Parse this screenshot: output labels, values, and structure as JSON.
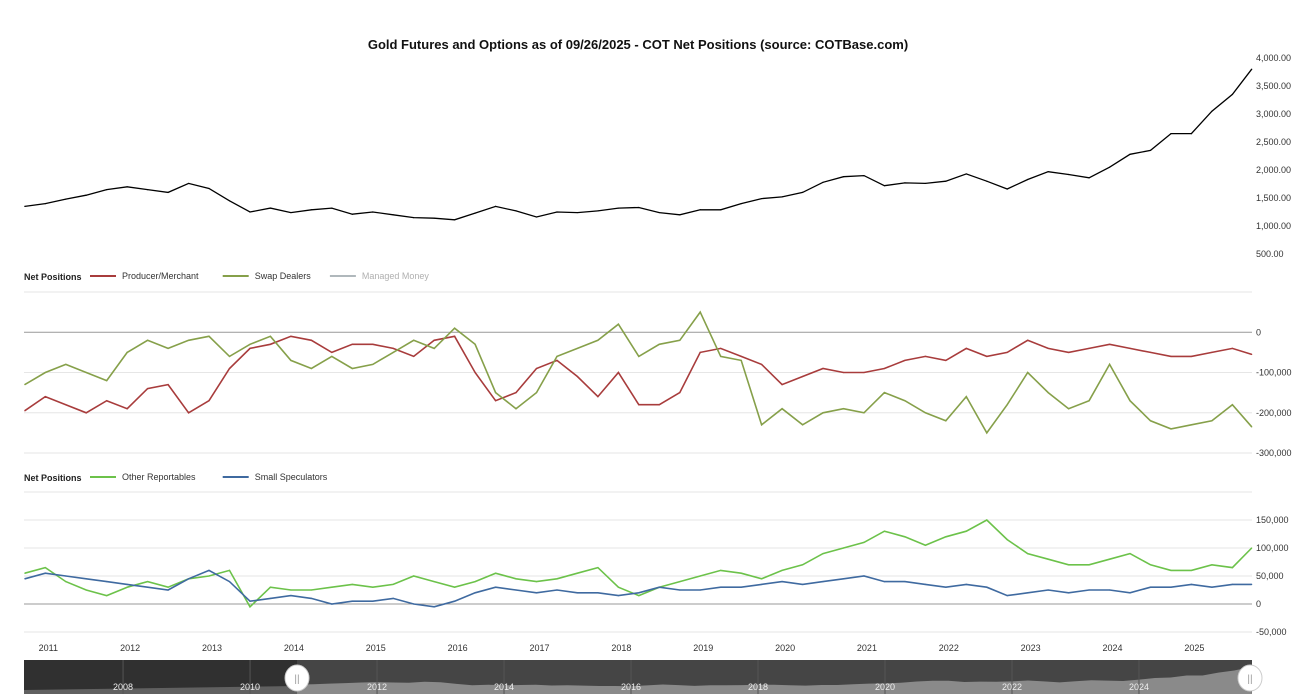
{
  "chart_data": [
    {
      "type": "line",
      "title": "Gold Futures and Options as of 09/26/2025 - COT Net Positions (source: COTBase.com)",
      "y_ticks": [
        "500.00",
        "1,000.00",
        "1,500.00",
        "2,000.00",
        "2,500.00",
        "3,000.00",
        "3,500.00",
        "4,000.00"
      ],
      "ylim": [
        500,
        4000
      ],
      "grid": false,
      "series": [
        {
          "color": "#000000",
          "values": [
            1350,
            1400,
            1480,
            1550,
            1650,
            1700,
            1650,
            1600,
            1760,
            1670,
            1450,
            1250,
            1320,
            1240,
            1290,
            1320,
            1210,
            1250,
            1200,
            1150,
            1140,
            1110,
            1230,
            1350,
            1270,
            1160,
            1250,
            1240,
            1270,
            1320,
            1330,
            1240,
            1200,
            1290,
            1290,
            1400,
            1490,
            1520,
            1600,
            1780,
            1880,
            1900,
            1720,
            1770,
            1760,
            1800,
            1930,
            1800,
            1660,
            1830,
            1970,
            1920,
            1860,
            2050,
            2280,
            2350,
            2650,
            2650,
            3050,
            3350,
            3800
          ]
        }
      ]
    },
    {
      "type": "line",
      "legend_title": "Net Positions",
      "legend_placement": "top-left",
      "y_ticks": [
        "-300,000",
        "-200,000",
        "-100,000",
        "0"
      ],
      "ylim": [
        -300000,
        100000
      ],
      "grid": true,
      "series": [
        {
          "name": "Producer/Merchant",
          "color": "#a83c3c",
          "values": [
            -195000,
            -160000,
            -180000,
            -200000,
            -170000,
            -190000,
            -140000,
            -130000,
            -200000,
            -170000,
            -90000,
            -40000,
            -30000,
            -10000,
            -20000,
            -50000,
            -30000,
            -30000,
            -40000,
            -60000,
            -20000,
            -10000,
            -100000,
            -170000,
            -150000,
            -90000,
            -70000,
            -110000,
            -160000,
            -100000,
            -180000,
            -180000,
            -150000,
            -50000,
            -40000,
            -60000,
            -80000,
            -130000,
            -110000,
            -90000,
            -100000,
            -100000,
            -90000,
            -70000,
            -60000,
            -70000,
            -40000,
            -60000,
            -50000,
            -20000,
            -40000,
            -50000,
            -40000,
            -30000,
            -40000,
            -50000,
            -60000,
            -60000,
            -50000,
            -40000,
            -55000
          ]
        },
        {
          "name": "Swap Dealers",
          "color": "#86a04a",
          "values": [
            -130000,
            -100000,
            -80000,
            -100000,
            -120000,
            -50000,
            -20000,
            -40000,
            -20000,
            -10000,
            -60000,
            -30000,
            -10000,
            -70000,
            -90000,
            -60000,
            -90000,
            -80000,
            -50000,
            -20000,
            -40000,
            10000,
            -30000,
            -150000,
            -190000,
            -150000,
            -60000,
            -40000,
            -20000,
            20000,
            -60000,
            -30000,
            -20000,
            50000,
            -60000,
            -70000,
            -230000,
            -190000,
            -230000,
            -200000,
            -190000,
            -200000,
            -150000,
            -170000,
            -200000,
            -220000,
            -160000,
            -250000,
            -180000,
            -100000,
            -150000,
            -190000,
            -170000,
            -80000,
            -170000,
            -220000,
            -240000,
            -230000,
            -220000,
            -180000,
            -235000
          ]
        },
        {
          "name": "Managed Money",
          "color": "#b0b8bc",
          "hidden": true,
          "values": []
        }
      ]
    },
    {
      "type": "line",
      "legend_title": "Net Positions",
      "legend_placement": "top-left",
      "y_ticks": [
        "-50,000",
        "0",
        "50,000",
        "100,000",
        "150,000"
      ],
      "ylim": [
        -50000,
        200000
      ],
      "grid": true,
      "x_ticks": [
        "2011",
        "2012",
        "2013",
        "2014",
        "2015",
        "2016",
        "2017",
        "2018",
        "2019",
        "2020",
        "2021",
        "2022",
        "2023",
        "2024",
        "2025"
      ],
      "x": [
        "2010-10-01",
        "2011-01-01",
        "2011-04-01",
        "2011-07-01",
        "2011-10-01",
        "2012-01-01",
        "2012-04-01",
        "2012-07-01",
        "2012-10-01",
        "2013-01-01",
        "2013-04-01",
        "2013-07-01",
        "2013-10-01",
        "2014-01-01",
        "2014-04-01",
        "2014-07-01",
        "2014-10-01",
        "2015-01-01",
        "2015-04-01",
        "2015-07-01",
        "2015-10-01",
        "2016-01-01",
        "2016-04-01",
        "2016-07-01",
        "2016-10-01",
        "2017-01-01",
        "2017-04-01",
        "2017-07-01",
        "2017-10-01",
        "2018-01-01",
        "2018-04-01",
        "2018-07-01",
        "2018-10-01",
        "2019-01-01",
        "2019-04-01",
        "2019-07-01",
        "2019-10-01",
        "2020-01-01",
        "2020-04-01",
        "2020-07-01",
        "2020-10-01",
        "2021-01-01",
        "2021-04-01",
        "2021-07-01",
        "2021-10-01",
        "2022-01-01",
        "2022-04-01",
        "2022-07-01",
        "2022-10-01",
        "2023-01-01",
        "2023-04-01",
        "2023-07-01",
        "2023-10-01",
        "2024-01-01",
        "2024-04-01",
        "2024-07-01",
        "2024-10-01",
        "2025-01-01",
        "2025-04-01",
        "2025-07-01",
        "2025-09-26"
      ],
      "series": [
        {
          "name": "Other Reportables",
          "color": "#6cc24a",
          "values": [
            55000,
            65000,
            40000,
            25000,
            15000,
            30000,
            40000,
            30000,
            45000,
            50000,
            60000,
            -5000,
            30000,
            25000,
            25000,
            30000,
            35000,
            30000,
            35000,
            50000,
            40000,
            30000,
            40000,
            55000,
            45000,
            40000,
            45000,
            55000,
            65000,
            30000,
            15000,
            30000,
            40000,
            50000,
            60000,
            55000,
            45000,
            60000,
            70000,
            90000,
            100000,
            110000,
            130000,
            120000,
            105000,
            120000,
            130000,
            150000,
            115000,
            90000,
            80000,
            70000,
            70000,
            80000,
            90000,
            70000,
            60000,
            60000,
            70000,
            65000,
            100000
          ]
        },
        {
          "name": "Small Speculators",
          "color": "#3f6aa0",
          "values": [
            45000,
            55000,
            50000,
            45000,
            40000,
            35000,
            30000,
            25000,
            45000,
            60000,
            40000,
            5000,
            10000,
            15000,
            10000,
            0,
            5000,
            5000,
            10000,
            0,
            -5000,
            5000,
            20000,
            30000,
            25000,
            20000,
            25000,
            20000,
            20000,
            15000,
            20000,
            30000,
            25000,
            25000,
            30000,
            30000,
            35000,
            40000,
            35000,
            40000,
            45000,
            50000,
            40000,
            40000,
            35000,
            30000,
            35000,
            30000,
            15000,
            20000,
            25000,
            20000,
            25000,
            25000,
            20000,
            30000,
            30000,
            35000,
            30000,
            35000,
            35000
          ]
        }
      ]
    }
  ],
  "navigator": {
    "x_ticks": [
      "2008",
      "2010",
      "2012",
      "2014",
      "2016",
      "2018",
      "2020",
      "2022",
      "2024"
    ],
    "handle_left_label": "||",
    "handle_right_label": "||"
  }
}
